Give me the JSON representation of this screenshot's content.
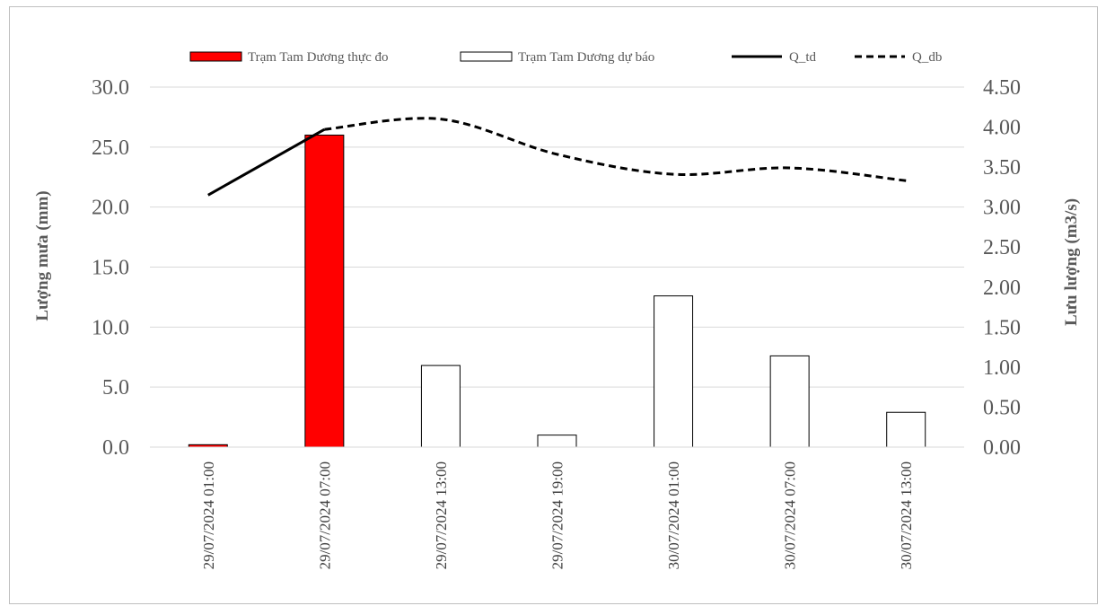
{
  "chart_data": {
    "type": "bar",
    "categories": [
      "29/07/2024 01:00",
      "29/07/2024 07:00",
      "29/07/2024 13:00",
      "29/07/2024 19:00",
      "30/07/2024 01:00",
      "30/07/2024 07:00",
      "30/07/2024 13:00"
    ],
    "title": "",
    "ylabel": "Lượng mưa (mm)",
    "y2label": "Lưu lượng (m3/s)",
    "ylim": [
      0,
      30
    ],
    "y2lim": [
      0,
      4.5
    ],
    "yticks": [
      "0.0",
      "5.0",
      "10.0",
      "15.0",
      "20.0",
      "25.0",
      "30.0"
    ],
    "y2ticks": [
      "0.00",
      "0.50",
      "1.00",
      "1.50",
      "2.00",
      "2.50",
      "3.00",
      "3.50",
      "4.00",
      "4.50"
    ],
    "grid": true,
    "legend_position": "top",
    "series": [
      {
        "name": "Trạm Tam Dương thực đo",
        "type": "bar",
        "axis": "left",
        "color": "#ff0000",
        "values": [
          0.2,
          26.0,
          null,
          null,
          null,
          null,
          null
        ]
      },
      {
        "name": "Trạm Tam Dương dự báo",
        "type": "bar",
        "axis": "left",
        "color": "#ffffff",
        "values": [
          null,
          null,
          6.8,
          1.0,
          12.6,
          7.6,
          2.9
        ]
      },
      {
        "name": "Q_td",
        "type": "line",
        "axis": "right",
        "color": "#000000",
        "dash": "solid",
        "values": [
          3.15,
          3.97,
          null,
          null,
          null,
          null,
          null
        ]
      },
      {
        "name": "Q_db",
        "type": "line",
        "axis": "right",
        "color": "#000000",
        "dash": "dashed",
        "values": [
          null,
          3.97,
          4.1,
          3.66,
          3.41,
          3.49,
          3.33
        ]
      }
    ]
  }
}
